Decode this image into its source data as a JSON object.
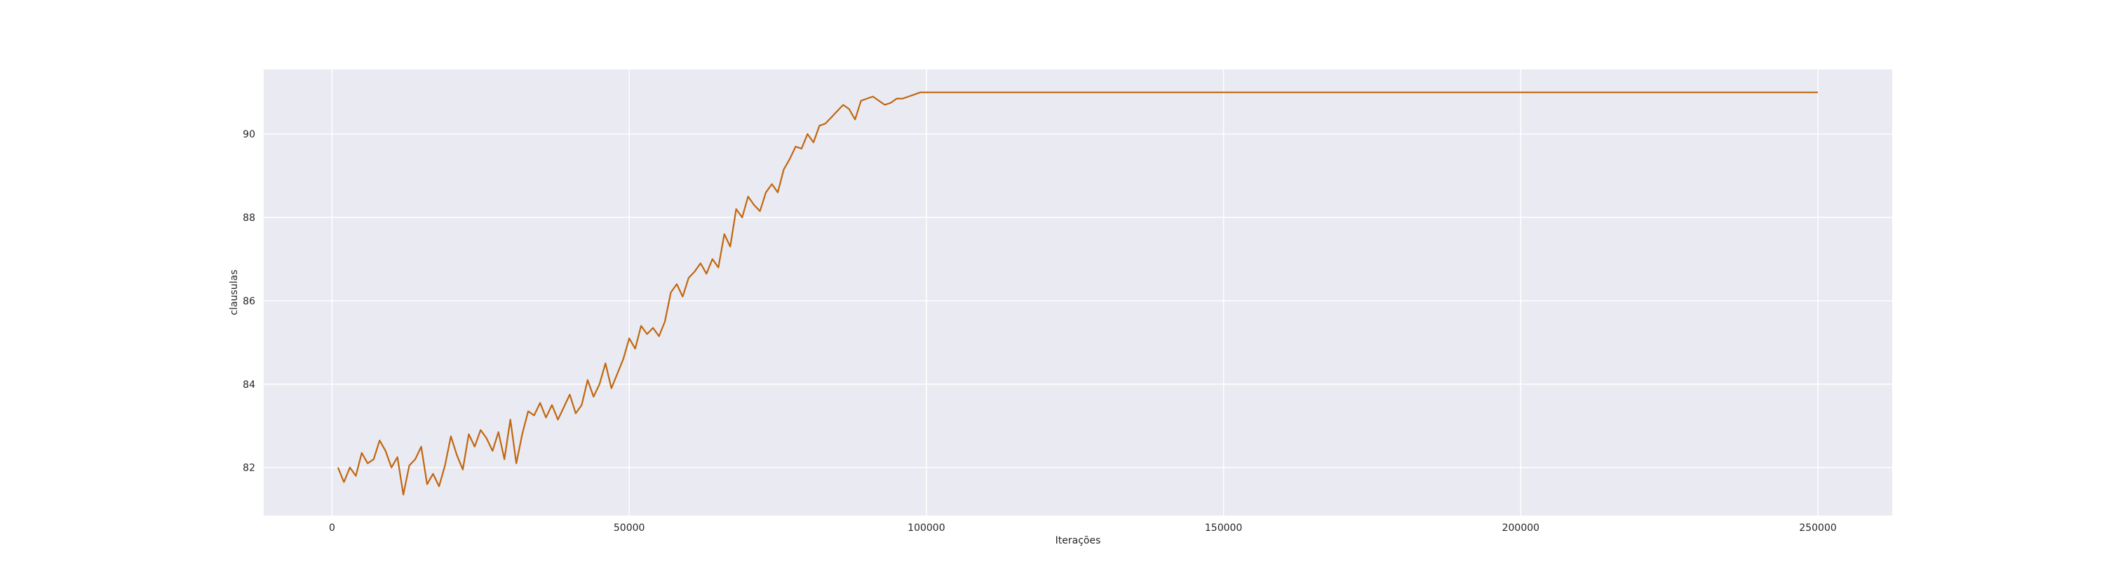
{
  "chart_data": {
    "type": "line",
    "title": "",
    "xlabel": "Iterações",
    "ylabel": "clausulas",
    "xlim": [
      -11500,
      262500
    ],
    "ylim": [
      80.85,
      91.55
    ],
    "xticks": [
      0,
      50000,
      100000,
      150000,
      200000,
      250000
    ],
    "xtick_labels": [
      "0",
      "50000",
      "100000",
      "150000",
      "200000",
      "250000"
    ],
    "yticks": [
      82,
      84,
      86,
      88,
      90
    ],
    "ytick_labels": [
      "82",
      "84",
      "86",
      "88",
      "90"
    ],
    "grid": true,
    "legend": "none",
    "colors": {
      "plot_background": "#eaeaf2",
      "grid": "#ffffff",
      "line": "#c0670f"
    },
    "series": [
      {
        "x": [
          1000,
          2000,
          3000,
          4000,
          5000,
          6000,
          7000,
          8000,
          9000,
          10000,
          11000,
          12000,
          13000,
          14000,
          15000,
          16000,
          17000,
          18000,
          19000,
          20000,
          21000,
          22000,
          23000,
          24000,
          25000,
          26000,
          27000,
          28000,
          29000,
          30000,
          31000,
          32000,
          33000,
          34000,
          35000,
          36000,
          37000,
          38000,
          39000,
          40000,
          41000,
          42000,
          43000,
          44000,
          45000,
          46000,
          47000,
          48000,
          49000,
          50000,
          51000,
          52000,
          53000,
          54000,
          55000,
          56000,
          57000,
          58000,
          59000,
          60000,
          61000,
          62000,
          63000,
          64000,
          65000,
          66000,
          67000,
          68000,
          69000,
          70000,
          71000,
          72000,
          73000,
          74000,
          75000,
          76000,
          77000,
          78000,
          79000,
          80000,
          81000,
          82000,
          83000,
          84000,
          85000,
          86000,
          87000,
          88000,
          89000,
          90000,
          91000,
          92000,
          93000,
          94000,
          95000,
          96000,
          97000,
          98000,
          99000,
          100000,
          101000,
          102000,
          250000
        ],
        "y": [
          82.0,
          81.65,
          82.0,
          81.8,
          82.35,
          82.1,
          82.2,
          82.65,
          82.4,
          82.0,
          82.25,
          81.35,
          82.05,
          82.2,
          82.5,
          81.6,
          81.85,
          81.55,
          82.05,
          82.75,
          82.3,
          81.95,
          82.8,
          82.5,
          82.9,
          82.7,
          82.4,
          82.85,
          82.2,
          83.15,
          82.1,
          82.8,
          83.35,
          83.25,
          83.55,
          83.2,
          83.5,
          83.15,
          83.45,
          83.75,
          83.3,
          83.5,
          84.1,
          83.7,
          84.0,
          84.5,
          83.9,
          84.25,
          84.6,
          85.1,
          84.85,
          85.4,
          85.2,
          85.35,
          85.15,
          85.5,
          86.2,
          86.4,
          86.1,
          86.55,
          86.7,
          86.9,
          86.65,
          87.0,
          86.8,
          87.6,
          87.3,
          88.2,
          88.0,
          88.5,
          88.3,
          88.15,
          88.6,
          88.8,
          88.6,
          89.15,
          89.4,
          89.7,
          89.65,
          90.0,
          89.8,
          90.2,
          90.25,
          90.4,
          90.55,
          90.7,
          90.6,
          90.35,
          90.8,
          90.85,
          90.9,
          90.8,
          90.7,
          90.75,
          90.85,
          90.85,
          90.9,
          90.95,
          91.0,
          91.0,
          91.0,
          91.0,
          91.0
        ]
      }
    ]
  }
}
